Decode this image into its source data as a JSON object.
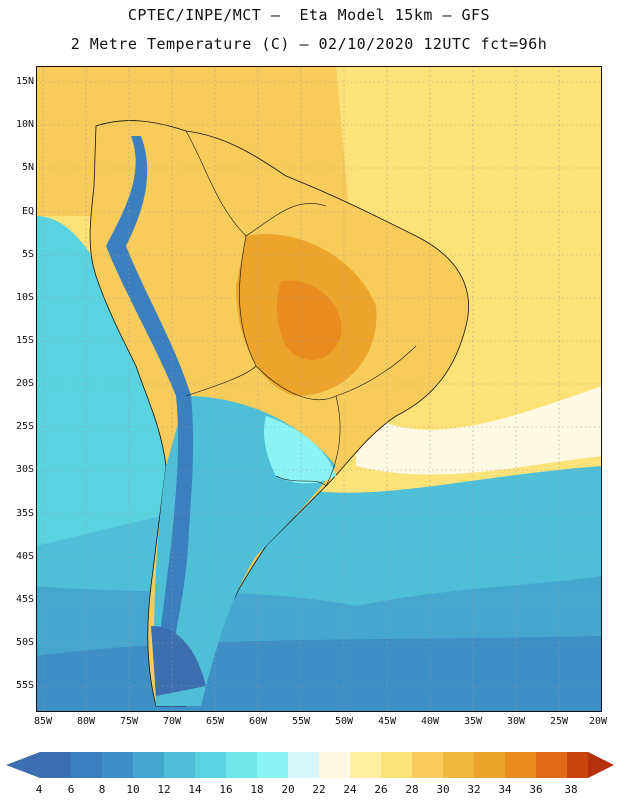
{
  "title_line1": "CPTEC/INPE/MCT –  Eta Model 15km – GFS",
  "title_line2": "2 Metre Temperature (C) – 02/10/2020 12UTC fct=96h",
  "lat_labels": [
    "15N",
    "10N",
    "5N",
    "EQ",
    "5S",
    "10S",
    "15S",
    "20S",
    "25S",
    "30S",
    "35S",
    "40S",
    "45S",
    "50S",
    "55S"
  ],
  "lon_labels": [
    "85W",
    "80W",
    "75W",
    "70W",
    "65W",
    "60W",
    "55W",
    "50W",
    "45W",
    "40W",
    "35W",
    "30W",
    "25W",
    "20W"
  ],
  "colorbar": {
    "labels": [
      "4",
      "6",
      "8",
      "10",
      "12",
      "14",
      "16",
      "18",
      "20",
      "22",
      "24",
      "26",
      "28",
      "30",
      "32",
      "34",
      "36",
      "38"
    ],
    "colors": [
      "#3d6fb0",
      "#3b7fbe",
      "#3e8fc6",
      "#45a6d0",
      "#4fbfd8",
      "#59d3df",
      "#6ee6ea",
      "#8bf3f4",
      "#d9f6fb",
      "#fdf9e3",
      "#fdf0a0",
      "#fde27a",
      "#f8cc5a",
      "#f0b83c",
      "#eda42a",
      "#e88c1f",
      "#df6a17",
      "#c84510",
      "#b3310c"
    ]
  }
}
